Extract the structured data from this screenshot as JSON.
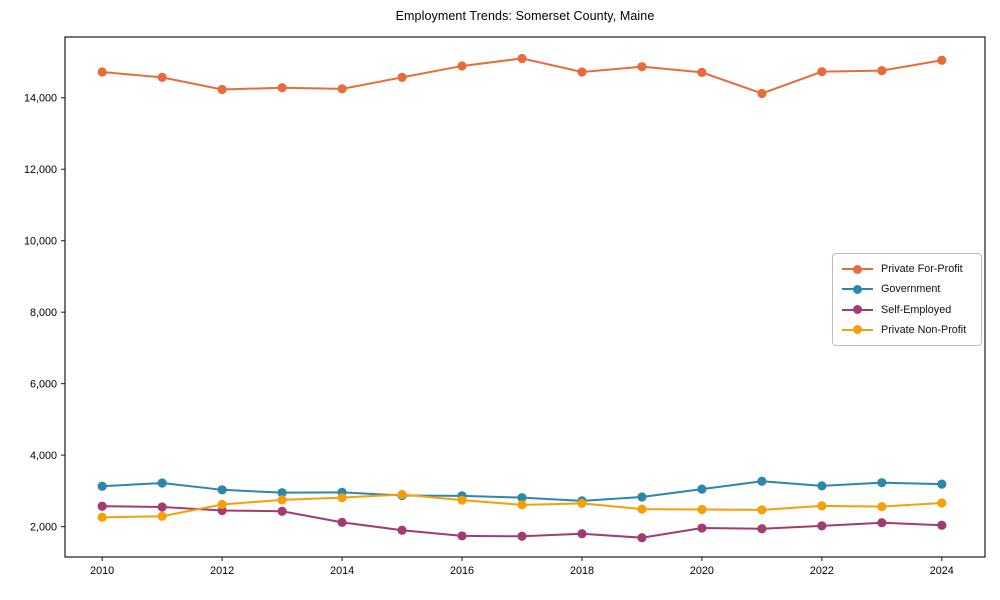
{
  "title": "Employment Trends: Somerset County, Maine",
  "axis_color": "#1a1a1a",
  "chart_data": {
    "type": "line",
    "title": "Employment Trends: Somerset County, Maine",
    "xlabel": "",
    "ylabel": "",
    "grid": false,
    "legend_position": "center-right",
    "x": [
      2010,
      2011,
      2012,
      2013,
      2014,
      2015,
      2016,
      2017,
      2018,
      2019,
      2020,
      2021,
      2022,
      2023,
      2024
    ],
    "xlim": [
      2009.38,
      2024.72
    ],
    "ylim": [
      1150,
      15700
    ],
    "x_ticks": [
      2010,
      2012,
      2014,
      2016,
      2018,
      2020,
      2022,
      2024
    ],
    "x_tick_labels": [
      "2010",
      "2012",
      "2014",
      "2016",
      "2018",
      "2020",
      "2022",
      "2024"
    ],
    "y_ticks": [
      2000,
      4000,
      6000,
      8000,
      10000,
      12000,
      14000
    ],
    "y_tick_labels": [
      "2,000",
      "4,000",
      "6,000",
      "8,000",
      "10,000",
      "12,000",
      "14,000"
    ],
    "series": [
      {
        "name": "Private For-Profit",
        "color": "#e66c3a",
        "values": [
          14720,
          14570,
          14230,
          14280,
          14250,
          14570,
          14890,
          15100,
          14720,
          14870,
          14710,
          14120,
          14730,
          14760,
          15050
        ]
      },
      {
        "name": "Government",
        "color": "#2e86ab",
        "values": [
          3130,
          3220,
          3030,
          2950,
          2960,
          2870,
          2860,
          2810,
          2720,
          2830,
          3050,
          3270,
          3140,
          3230,
          3190
        ]
      },
      {
        "name": "Self-Employed",
        "color": "#a23b72",
        "values": [
          2570,
          2550,
          2450,
          2430,
          2120,
          1900,
          1740,
          1730,
          1800,
          1690,
          1960,
          1940,
          2020,
          2110,
          2040
        ]
      },
      {
        "name": "Private Non-Profit",
        "color": "#f5a008",
        "values": [
          2260,
          2290,
          2620,
          2750,
          2810,
          2900,
          2740,
          2610,
          2650,
          2490,
          2480,
          2470,
          2580,
          2560,
          2660
        ]
      }
    ]
  }
}
